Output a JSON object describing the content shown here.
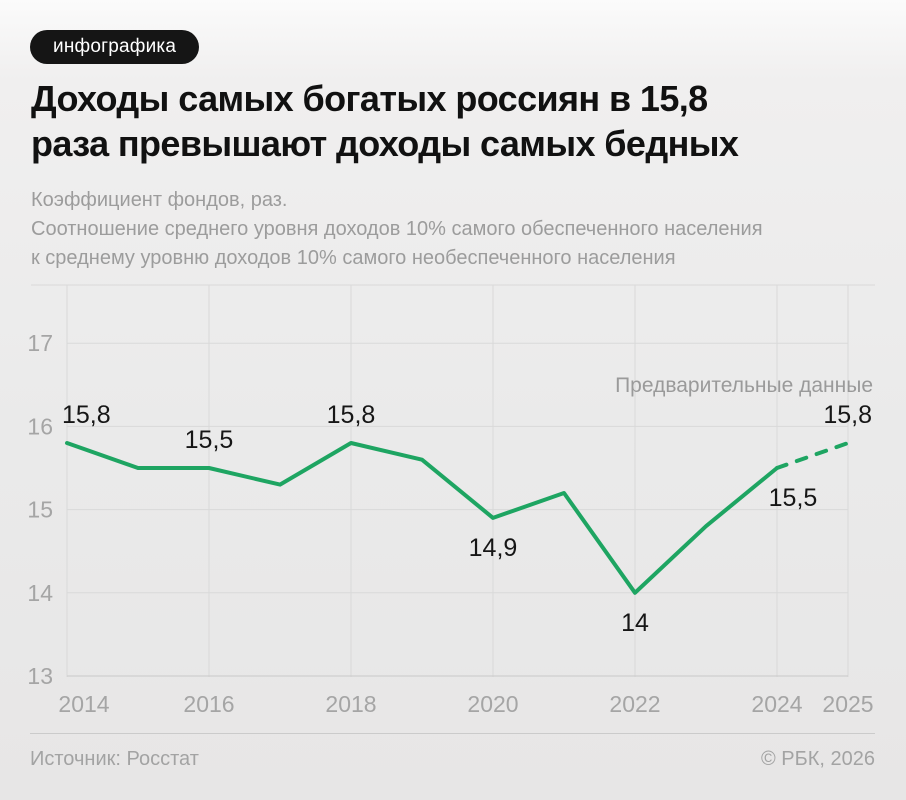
{
  "badge": {
    "label": "инфографика"
  },
  "title": {
    "line1": "Доходы самых богатых россиян в 15,8",
    "line2": "раза превышают доходы самых бедных"
  },
  "subtitle": {
    "line1": "Коэффициент фондов, раз.",
    "line2": "Соотношение среднего уровня доходов 10% самого обеспеченного населения",
    "line3": "к среднему уровню доходов 10% самого необеспеченного населения"
  },
  "footer": {
    "source": "Источник: Росстат",
    "copyright": "© РБК, 2026"
  },
  "colors": {
    "accent_green": "#1ea562",
    "grid": "#d9d9d9",
    "axis_line": "#c9c9c9",
    "axis_text": "#a5a5a5",
    "label_dark": "#161616",
    "annotation_gray": "#9a9a9a",
    "badge_bg": "#151515",
    "badge_text": "#ffffff"
  },
  "chart_data": {
    "type": "line",
    "title": "Коэффициент фондов, раз.",
    "xlabel": "",
    "ylabel": "",
    "x": [
      2014,
      2015,
      2016,
      2017,
      2018,
      2019,
      2020,
      2021,
      2022,
      2023,
      2024,
      2025
    ],
    "values": [
      15.8,
      15.5,
      15.5,
      15.3,
      15.8,
      15.6,
      14.9,
      15.2,
      14,
      14.8,
      15.5,
      15.8
    ],
    "dashed_from_x": 2024,
    "dashed_note": "Предварительные данные",
    "x_ticks": [
      2014,
      2016,
      2018,
      2020,
      2022,
      2024,
      2025
    ],
    "y_ticks": [
      17,
      16,
      15,
      14,
      13
    ],
    "ylim": [
      13,
      17.7
    ],
    "grid": true,
    "legend": false,
    "point_labels": [
      {
        "x": 2014,
        "text": "15,8",
        "placement": "above",
        "anchor": "start",
        "dx": -5
      },
      {
        "x": 2016,
        "text": "15,5",
        "placement": "above"
      },
      {
        "x": 2018,
        "text": "15,8",
        "placement": "above"
      },
      {
        "x": 2020,
        "text": "14,9",
        "placement": "below"
      },
      {
        "x": 2022,
        "text": "14",
        "placement": "below"
      },
      {
        "x": 2024,
        "text": "15,5",
        "placement": "below",
        "dx": 16
      },
      {
        "x": 2025,
        "text": "15,8",
        "placement": "above",
        "anchor": "end",
        "dx": 24
      }
    ]
  }
}
